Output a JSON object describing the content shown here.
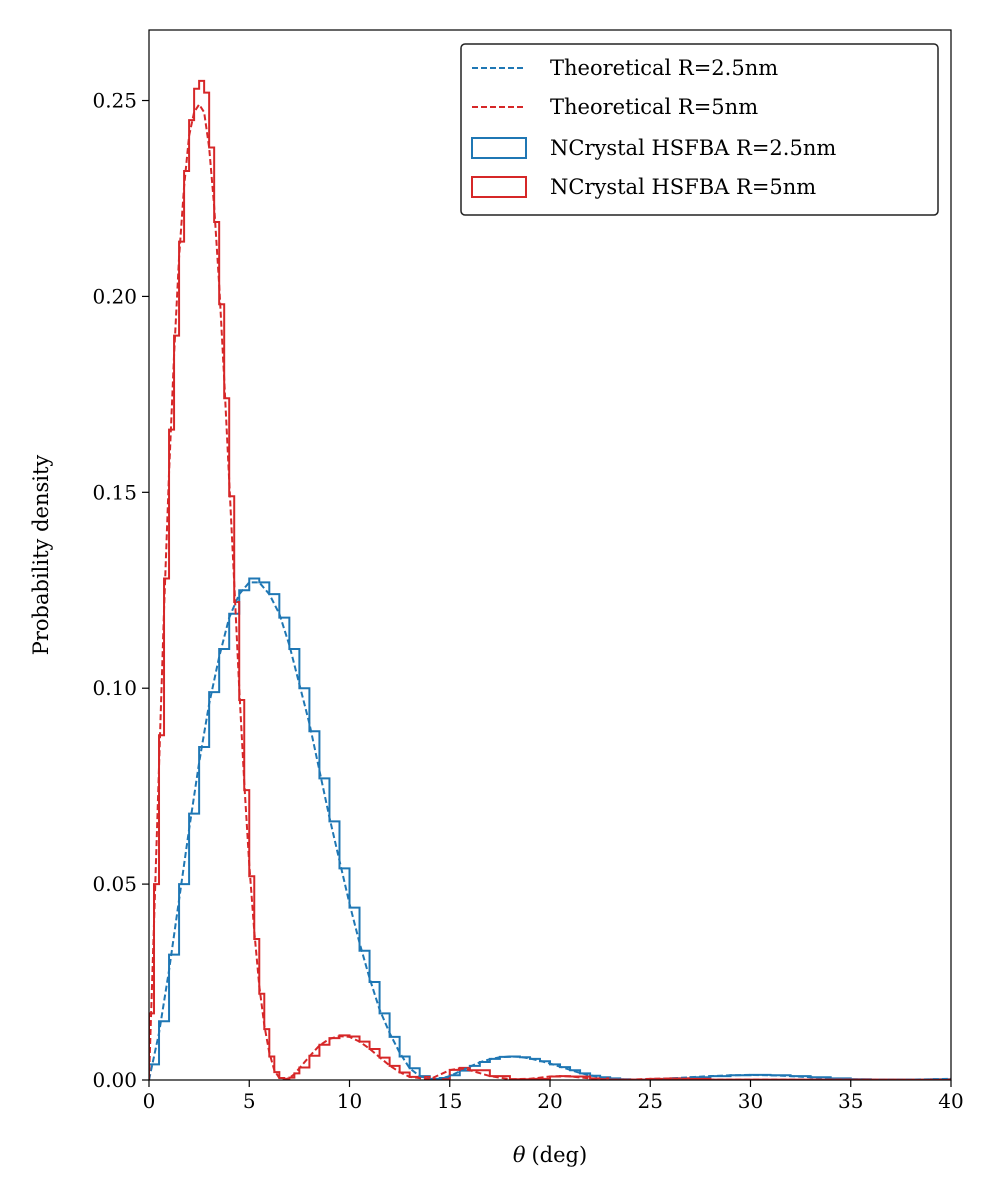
{
  "chart_data": {
    "type": "line",
    "xlabel_symbol": "θ",
    "xlabel_unit": "(deg)",
    "ylabel": "Probability density",
    "xlim": [
      0,
      40
    ],
    "ylim": [
      0,
      0.268
    ],
    "xticks": [
      0,
      5,
      10,
      15,
      20,
      25,
      30,
      35,
      40
    ],
    "yticks": [
      0.0,
      0.05,
      0.1,
      0.15,
      0.2,
      0.25
    ],
    "ytick_labels": [
      "0.00",
      "0.05",
      "0.10",
      "0.15",
      "0.20",
      "0.25"
    ],
    "legend_position": "top-right",
    "grid": false,
    "series": [
      {
        "name": "Theoretical R=2.5nm",
        "kind": "dashed-line",
        "color": "#1f77b4",
        "x": [
          0,
          0.5,
          1,
          1.5,
          2,
          2.5,
          3,
          3.5,
          4,
          4.5,
          5,
          5.5,
          6,
          6.5,
          7,
          7.5,
          8,
          8.5,
          9,
          9.5,
          10,
          10.5,
          11,
          11.5,
          12,
          12.5,
          13,
          13.5,
          14,
          14.5,
          15,
          15.5,
          16,
          16.5,
          17,
          17.5,
          18,
          18.5,
          19,
          19.5,
          20,
          20.5,
          21,
          21.5,
          22,
          22.5,
          23,
          23.5,
          24,
          24.5,
          25,
          26,
          27,
          28,
          29,
          30,
          31,
          32,
          33,
          34,
          35,
          36,
          37,
          38,
          39,
          40
        ],
        "y": [
          0,
          0.012,
          0.028,
          0.046,
          0.064,
          0.081,
          0.096,
          0.108,
          0.118,
          0.124,
          0.127,
          0.127,
          0.124,
          0.119,
          0.111,
          0.101,
          0.091,
          0.079,
          0.067,
          0.056,
          0.045,
          0.035,
          0.026,
          0.018,
          0.012,
          0.007,
          0.003,
          0.001,
          0.0002,
          0.0003,
          0.001,
          0.0022,
          0.0034,
          0.0045,
          0.0053,
          0.0058,
          0.006,
          0.0059,
          0.0055,
          0.0049,
          0.0042,
          0.0034,
          0.0026,
          0.0018,
          0.0012,
          0.0007,
          0.0004,
          0.0002,
          0.0001,
          0.0001,
          0.0002,
          0.0004,
          0.0007,
          0.001,
          0.0012,
          0.0013,
          0.0012,
          0.001,
          0.0007,
          0.0004,
          0.0002,
          0.0001,
          0.0001,
          0.0001,
          0.0002,
          0.0003
        ]
      },
      {
        "name": "Theoretical R=5nm",
        "kind": "dashed-line",
        "color": "#d62728",
        "x": [
          0,
          0.25,
          0.5,
          0.75,
          1,
          1.25,
          1.5,
          1.75,
          2,
          2.25,
          2.5,
          2.75,
          3,
          3.25,
          3.5,
          3.75,
          4,
          4.25,
          4.5,
          4.75,
          5,
          5.25,
          5.5,
          5.75,
          6,
          6.25,
          6.5,
          6.75,
          7,
          7.25,
          7.5,
          8,
          8.5,
          9,
          9.5,
          10,
          10.5,
          11,
          11.5,
          12,
          12.5,
          13,
          14,
          15,
          15.5,
          16,
          17,
          18,
          19,
          20,
          20.5,
          21,
          22,
          23,
          24,
          25,
          26,
          27,
          28,
          30,
          35,
          40
        ],
        "y": [
          0,
          0.04,
          0.08,
          0.12,
          0.155,
          0.185,
          0.21,
          0.228,
          0.241,
          0.247,
          0.249,
          0.247,
          0.238,
          0.223,
          0.203,
          0.179,
          0.153,
          0.127,
          0.1,
          0.076,
          0.055,
          0.038,
          0.024,
          0.014,
          0.007,
          0.0025,
          0.0005,
          0.0001,
          0.0005,
          0.0015,
          0.003,
          0.006,
          0.0088,
          0.0105,
          0.0112,
          0.011,
          0.0098,
          0.008,
          0.0058,
          0.0037,
          0.002,
          0.0008,
          0.0002,
          0.0025,
          0.003,
          0.0025,
          0.001,
          0.0002,
          0.0003,
          0.0009,
          0.001,
          0.0009,
          0.0004,
          0.0001,
          0.0001,
          0.0003,
          0.0004,
          0.0003,
          0.0001,
          0.0001,
          0.0001,
          0
        ]
      },
      {
        "name": "NCrystal HSFBA R=2.5nm",
        "kind": "step-histogram",
        "color": "#1f77b4",
        "x": [
          0,
          0.5,
          1,
          1.5,
          2,
          2.5,
          3,
          3.5,
          4,
          4.5,
          5,
          5.5,
          6,
          6.5,
          7,
          7.5,
          8,
          8.5,
          9,
          9.5,
          10,
          10.5,
          11,
          11.5,
          12,
          12.5,
          13,
          13.5,
          14,
          14.5,
          15,
          15.5,
          16,
          16.5,
          17,
          17.5,
          18,
          18.5,
          19,
          19.5,
          20,
          20.5,
          21,
          21.5,
          22,
          22.5,
          23,
          23.5,
          24,
          24.5,
          25,
          26,
          27,
          28,
          29,
          30,
          31,
          32,
          33,
          34,
          35,
          36,
          37,
          38,
          39,
          40
        ],
        "y": [
          0.004,
          0.015,
          0.032,
          0.05,
          0.068,
          0.085,
          0.099,
          0.11,
          0.119,
          0.125,
          0.128,
          0.127,
          0.124,
          0.118,
          0.11,
          0.1,
          0.089,
          0.077,
          0.066,
          0.054,
          0.044,
          0.033,
          0.025,
          0.017,
          0.011,
          0.006,
          0.003,
          0.001,
          0.0003,
          0.0005,
          0.0012,
          0.0024,
          0.0036,
          0.0046,
          0.0054,
          0.0059,
          0.006,
          0.0058,
          0.0054,
          0.0048,
          0.004,
          0.0033,
          0.0025,
          0.0017,
          0.0011,
          0.0007,
          0.0004,
          0.0002,
          0.0001,
          0.0001,
          0.0002,
          0.0004,
          0.0007,
          0.001,
          0.0012,
          0.0013,
          0.0012,
          0.001,
          0.0007,
          0.0004,
          0.0002,
          0.0001,
          0.0001,
          0.0001,
          0.0002,
          0.0003
        ]
      },
      {
        "name": "NCrystal HSFBA R=5nm",
        "kind": "step-histogram",
        "color": "#d62728",
        "x": [
          0,
          0.25,
          0.5,
          0.75,
          1,
          1.25,
          1.5,
          1.75,
          2,
          2.25,
          2.5,
          2.75,
          3,
          3.25,
          3.5,
          3.75,
          4,
          4.25,
          4.5,
          4.75,
          5,
          5.25,
          5.5,
          5.75,
          6,
          6.25,
          6.5,
          6.75,
          7,
          7.25,
          7.5,
          8,
          8.5,
          9,
          9.5,
          10,
          10.5,
          11,
          11.5,
          12,
          12.5,
          13,
          14,
          15,
          15.5,
          16,
          17,
          18,
          19,
          20,
          20.5,
          21,
          22,
          23,
          24,
          25,
          26,
          27,
          28,
          30,
          35,
          40
        ],
        "y": [
          0.017,
          0.05,
          0.088,
          0.128,
          0.166,
          0.19,
          0.214,
          0.232,
          0.245,
          0.253,
          0.255,
          0.252,
          0.238,
          0.219,
          0.198,
          0.174,
          0.149,
          0.122,
          0.097,
          0.074,
          0.052,
          0.036,
          0.022,
          0.013,
          0.006,
          0.002,
          0.0005,
          0.0002,
          0.0006,
          0.0017,
          0.0032,
          0.0062,
          0.009,
          0.0107,
          0.0114,
          0.0111,
          0.0098,
          0.0079,
          0.0057,
          0.0036,
          0.0019,
          0.0008,
          0.0002,
          0.0026,
          0.0031,
          0.0025,
          0.001,
          0.0002,
          0.0003,
          0.0009,
          0.001,
          0.0009,
          0.0004,
          0.0001,
          0.0001,
          0.0003,
          0.0004,
          0.0003,
          0.0001,
          0.0001,
          0.0001,
          0
        ]
      }
    ]
  }
}
